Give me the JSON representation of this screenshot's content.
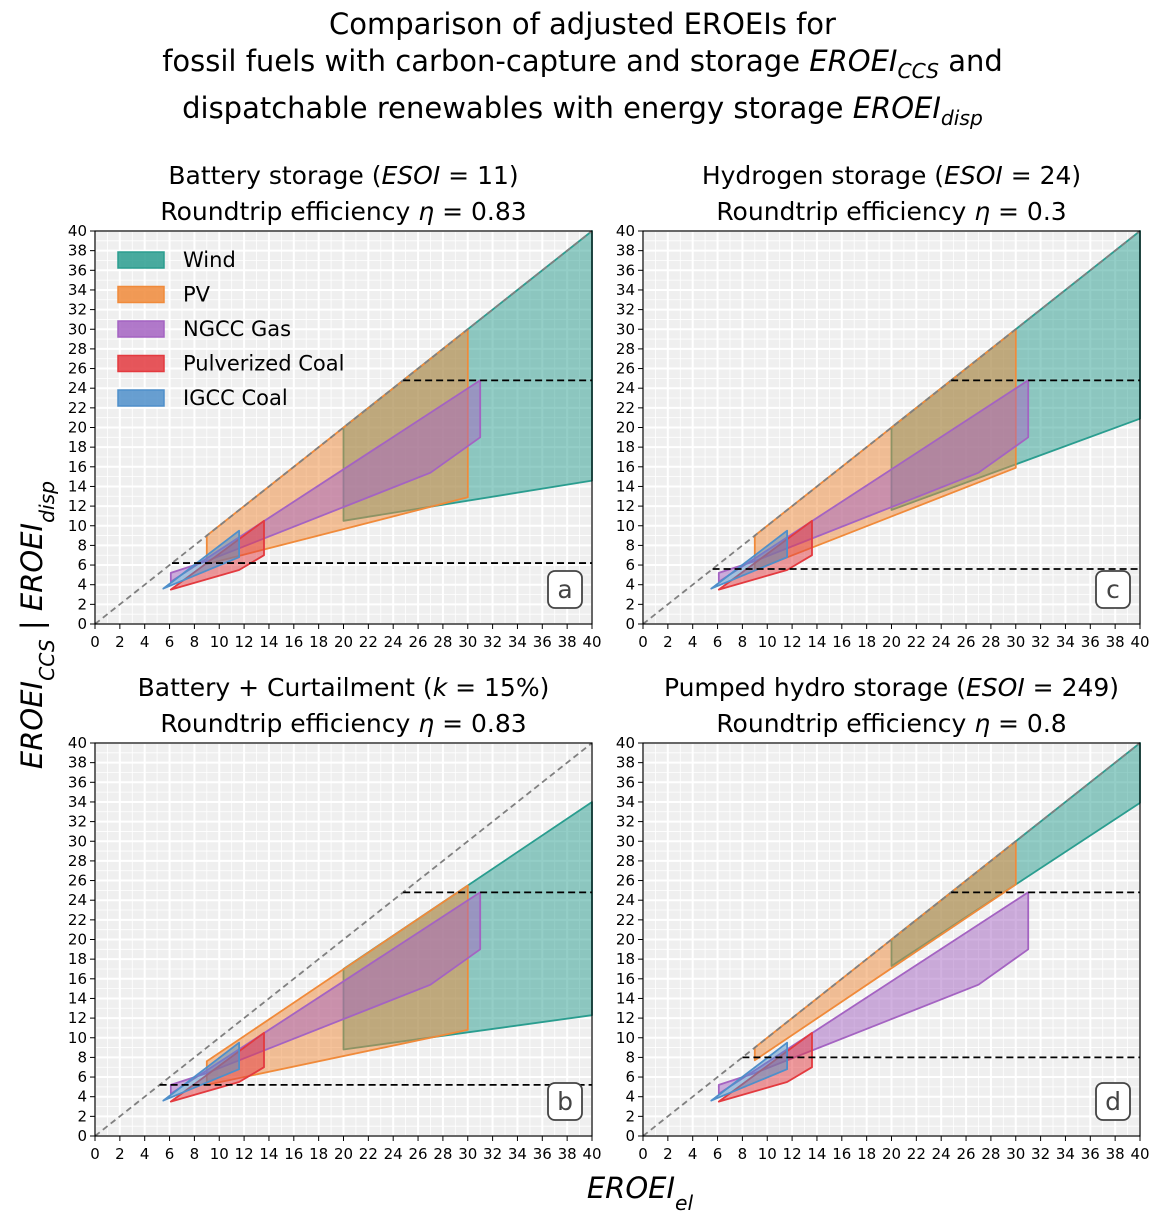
{
  "title_lines": [
    "Comparison of adjusted EROEIs for",
    "fossil fuels with carbon-capture and storage EROEI_CCS and",
    "dispatchable renewables with energy storage EROEI_disp"
  ],
  "xlabel": "EROEI_el",
  "ylabel": "EROEI_CCS | EROEI_disp",
  "colors": {
    "Wind": "#2a9d8f",
    "PV": "#f08a3a",
    "NGCC Gas": "#a463c2",
    "Pulverized Coal": "#e33a3f",
    "IGCC Coal": "#4f8fca",
    "panel_bg": "#efefef",
    "grid": "#ffffff"
  },
  "chart_data": [
    {
      "type": "area",
      "panel": "a",
      "title_lines": [
        "Battery storage (ESOI = 11)",
        "Roundtrip efficiency η = 0.83"
      ],
      "xlim": [
        0,
        40
      ],
      "ylim": [
        0,
        40
      ],
      "xticks": [
        0,
        2,
        4,
        6,
        8,
        10,
        12,
        14,
        16,
        18,
        20,
        22,
        24,
        26,
        28,
        30,
        32,
        34,
        36,
        38,
        40
      ],
      "yticks": [
        0,
        2,
        4,
        6,
        8,
        10,
        12,
        14,
        16,
        18,
        20,
        22,
        24,
        26,
        28,
        30,
        32,
        34,
        36,
        38,
        40
      ],
      "grid": true,
      "legend": {
        "placement": "top-left",
        "entries": [
          "Wind",
          "PV",
          "NGCC Gas",
          "Pulverized Coal",
          "IGCC Coal"
        ]
      },
      "diagonal": [
        [
          0,
          0
        ],
        [
          40,
          40
        ]
      ],
      "hlines": [
        {
          "y": 24.8,
          "x0": 24.8,
          "x1": 40
        },
        {
          "y": 6.2,
          "x0": 6.2,
          "x1": 40
        }
      ],
      "series": [
        {
          "name": "Wind",
          "polygon": [
            [
              20,
              20
            ],
            [
              40,
              40
            ],
            [
              40,
              14.6
            ],
            [
              20,
              10.5
            ]
          ]
        },
        {
          "name": "PV",
          "polygon": [
            [
              9,
              9
            ],
            [
              30,
              30
            ],
            [
              30,
              12.9
            ],
            [
              9,
              6.1
            ]
          ]
        },
        {
          "name": "NGCC Gas",
          "polygon": [
            [
              6.1,
              4.3
            ],
            [
              31,
              24.8
            ],
            [
              31,
              19
            ],
            [
              27,
              15.4
            ],
            [
              9,
              6.4
            ],
            [
              6.1,
              5.2
            ]
          ]
        },
        {
          "name": "Pulverized Coal",
          "polygon": [
            [
              6.1,
              3.5
            ],
            [
              13.6,
              10.5
            ],
            [
              13.6,
              7
            ],
            [
              11.6,
              5.5
            ],
            [
              6.1,
              3.5
            ]
          ]
        },
        {
          "name": "IGCC Coal",
          "polygon": [
            [
              5.5,
              3.6
            ],
            [
              11.6,
              9.5
            ],
            [
              11.6,
              6.8
            ],
            [
              5.5,
              3.6
            ]
          ]
        }
      ]
    },
    {
      "type": "area",
      "panel": "c",
      "title_lines": [
        "Hydrogen storage (ESOI = 24)",
        "Roundtrip efficiency η = 0.3"
      ],
      "xlim": [
        0,
        40
      ],
      "ylim": [
        0,
        40
      ],
      "xticks": [
        0,
        2,
        4,
        6,
        8,
        10,
        12,
        14,
        16,
        18,
        20,
        22,
        24,
        26,
        28,
        30,
        32,
        34,
        36,
        38,
        40
      ],
      "yticks": [
        0,
        2,
        4,
        6,
        8,
        10,
        12,
        14,
        16,
        18,
        20,
        22,
        24,
        26,
        28,
        30,
        32,
        34,
        36,
        38,
        40
      ],
      "grid": true,
      "diagonal": [
        [
          0,
          0
        ],
        [
          40,
          40
        ]
      ],
      "hlines": [
        {
          "y": 24.8,
          "x0": 24.8,
          "x1": 40
        },
        {
          "y": 5.6,
          "x0": 5.6,
          "x1": 40
        }
      ],
      "series": [
        {
          "name": "Wind",
          "polygon": [
            [
              20,
              20
            ],
            [
              40,
              40
            ],
            [
              40,
              20.9
            ],
            [
              20,
              11.6
            ]
          ]
        },
        {
          "name": "PV",
          "polygon": [
            [
              9,
              9
            ],
            [
              30,
              30
            ],
            [
              30,
              15.9
            ],
            [
              9,
              5.5
            ]
          ]
        },
        {
          "name": "NGCC Gas",
          "polygon": [
            [
              6.1,
              4.3
            ],
            [
              31,
              24.8
            ],
            [
              31,
              19
            ],
            [
              27,
              15.4
            ],
            [
              9,
              6.4
            ],
            [
              6.1,
              5.2
            ]
          ]
        },
        {
          "name": "Pulverized Coal",
          "polygon": [
            [
              6.1,
              3.5
            ],
            [
              13.6,
              10.5
            ],
            [
              13.6,
              7
            ],
            [
              11.6,
              5.5
            ],
            [
              6.1,
              3.5
            ]
          ]
        },
        {
          "name": "IGCC Coal",
          "polygon": [
            [
              5.5,
              3.6
            ],
            [
              11.6,
              9.5
            ],
            [
              11.6,
              6.8
            ],
            [
              5.5,
              3.6
            ]
          ]
        }
      ]
    },
    {
      "type": "area",
      "panel": "b",
      "title_lines": [
        "Battery + Curtailment (k = 15%)",
        "Roundtrip efficiency η = 0.83"
      ],
      "xlim": [
        0,
        40
      ],
      "ylim": [
        0,
        40
      ],
      "xticks": [
        0,
        2,
        4,
        6,
        8,
        10,
        12,
        14,
        16,
        18,
        20,
        22,
        24,
        26,
        28,
        30,
        32,
        34,
        36,
        38,
        40
      ],
      "yticks": [
        0,
        2,
        4,
        6,
        8,
        10,
        12,
        14,
        16,
        18,
        20,
        22,
        24,
        26,
        28,
        30,
        32,
        34,
        36,
        38,
        40
      ],
      "grid": true,
      "diagonal": [
        [
          0,
          0
        ],
        [
          40,
          40
        ]
      ],
      "hlines": [
        {
          "y": 24.8,
          "x0": 24.8,
          "x1": 40
        },
        {
          "y": 5.2,
          "x0": 5.2,
          "x1": 40
        }
      ],
      "series": [
        {
          "name": "Wind",
          "polygon": [
            [
              20,
              17
            ],
            [
              40,
              34
            ],
            [
              40,
              12.3
            ],
            [
              20,
              8.8
            ]
          ]
        },
        {
          "name": "PV",
          "polygon": [
            [
              9,
              7.6
            ],
            [
              30,
              25.5
            ],
            [
              30,
              10.8
            ],
            [
              9,
              5.2
            ]
          ]
        },
        {
          "name": "NGCC Gas",
          "polygon": [
            [
              6.1,
              4.3
            ],
            [
              31,
              24.8
            ],
            [
              31,
              19
            ],
            [
              27,
              15.4
            ],
            [
              9,
              6.4
            ],
            [
              6.1,
              5.2
            ]
          ]
        },
        {
          "name": "Pulverized Coal",
          "polygon": [
            [
              6.1,
              3.5
            ],
            [
              13.6,
              10.5
            ],
            [
              13.6,
              7
            ],
            [
              11.6,
              5.5
            ],
            [
              6.1,
              3.5
            ]
          ]
        },
        {
          "name": "IGCC Coal",
          "polygon": [
            [
              5.5,
              3.6
            ],
            [
              11.6,
              9.5
            ],
            [
              11.6,
              6.8
            ],
            [
              5.5,
              3.6
            ]
          ]
        }
      ]
    },
    {
      "type": "area",
      "panel": "d",
      "title_lines": [
        "Pumped hydro storage (ESOI = 249)",
        "Roundtrip efficiency η = 0.8"
      ],
      "xlim": [
        0,
        40
      ],
      "ylim": [
        0,
        40
      ],
      "xticks": [
        0,
        2,
        4,
        6,
        8,
        10,
        12,
        14,
        16,
        18,
        20,
        22,
        24,
        26,
        28,
        30,
        32,
        34,
        36,
        38,
        40
      ],
      "yticks": [
        0,
        2,
        4,
        6,
        8,
        10,
        12,
        14,
        16,
        18,
        20,
        22,
        24,
        26,
        28,
        30,
        32,
        34,
        36,
        38,
        40
      ],
      "grid": true,
      "diagonal": [
        [
          0,
          0
        ],
        [
          40,
          40
        ]
      ],
      "hlines": [
        {
          "y": 24.8,
          "x0": 24.8,
          "x1": 40
        },
        {
          "y": 8,
          "x0": 8,
          "x1": 40
        }
      ],
      "series": [
        {
          "name": "Wind",
          "polygon": [
            [
              20,
              20
            ],
            [
              40,
              40
            ],
            [
              40,
              33.9
            ],
            [
              20,
              17.3
            ]
          ]
        },
        {
          "name": "PV",
          "polygon": [
            [
              9,
              9
            ],
            [
              30,
              30
            ],
            [
              30,
              25.6
            ],
            [
              9,
              7.7
            ]
          ]
        },
        {
          "name": "NGCC Gas",
          "polygon": [
            [
              6.1,
              4.3
            ],
            [
              31,
              24.8
            ],
            [
              31,
              19
            ],
            [
              27,
              15.4
            ],
            [
              9,
              6.4
            ],
            [
              6.1,
              5.2
            ]
          ]
        },
        {
          "name": "Pulverized Coal",
          "polygon": [
            [
              6.1,
              3.5
            ],
            [
              13.6,
              10.5
            ],
            [
              13.6,
              7
            ],
            [
              11.6,
              5.5
            ],
            [
              6.1,
              3.5
            ]
          ]
        },
        {
          "name": "IGCC Coal",
          "polygon": [
            [
              5.5,
              3.6
            ],
            [
              11.6,
              9.5
            ],
            [
              11.6,
              6.8
            ],
            [
              5.5,
              3.6
            ]
          ]
        }
      ]
    }
  ]
}
